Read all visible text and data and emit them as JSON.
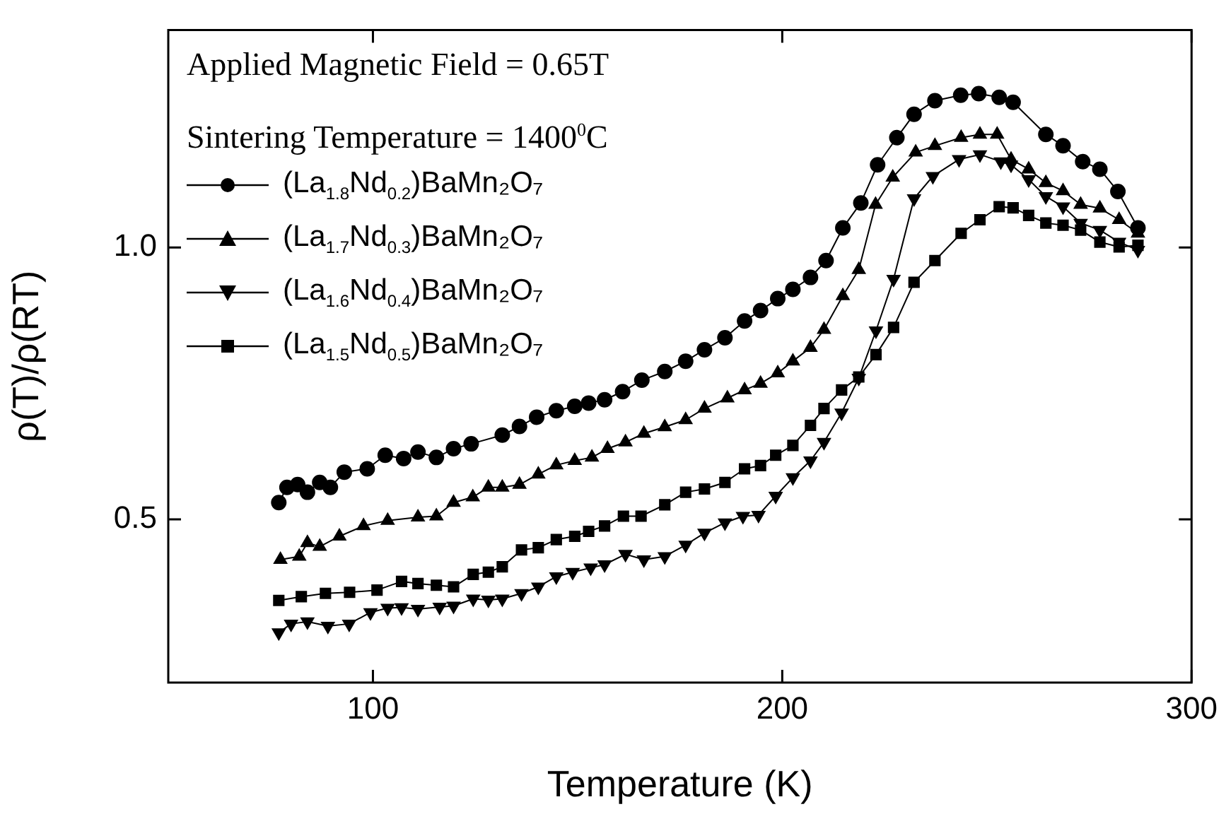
{
  "chart_data": {
    "type": "line",
    "xlabel": "Temperature (K)",
    "ylabel": "ρ(T)/ρ(RT)",
    "annotations": [
      "Applied Magnetic Field = 0.65T",
      "Sintering Temperature = 1400$^{0}$C"
    ],
    "xlim": [
      50,
      300
    ],
    "xticks": [
      100,
      200,
      300
    ],
    "ylim": [
      0.2,
      1.4
    ],
    "yticks": [
      {
        "value": 0.5,
        "label": "0.5"
      },
      {
        "value": 1.0,
        "label": "1.0"
      }
    ],
    "grid": false,
    "legend": "top left",
    "line_style": "solid",
    "series": [
      {
        "name": "(La$_{1.8}$Nd$_{0.2}$)BaMn₂O₇",
        "color": "#000000",
        "marker": "circle",
        "x": [
          77,
          79,
          81.6,
          84,
          87,
          89.6,
          93,
          98.6,
          103,
          107.5,
          111,
          115.5,
          119.7,
          124,
          131.6,
          135.8,
          140,
          144.8,
          149.3,
          152.7,
          156.6,
          161,
          165.7,
          171.3,
          176.4,
          181,
          186,
          190.8,
          194.7,
          198.9,
          202.6,
          206.9,
          210.7,
          214.8,
          219.2,
          223.3,
          228,
          232.2,
          237.3,
          243.6,
          248,
          253,
          256.4,
          264.4,
          268.6,
          273.4,
          277.6,
          282,
          286.9
        ],
        "values": [
          0.531,
          0.559,
          0.564,
          0.55,
          0.568,
          0.559,
          0.587,
          0.593,
          0.618,
          0.612,
          0.624,
          0.614,
          0.63,
          0.639,
          0.655,
          0.671,
          0.688,
          0.7,
          0.708,
          0.714,
          0.72,
          0.735,
          0.756,
          0.772,
          0.791,
          0.812,
          0.834,
          0.865,
          0.884,
          0.906,
          0.923,
          0.945,
          0.976,
          1.036,
          1.082,
          1.152,
          1.202,
          1.245,
          1.27,
          1.28,
          1.283,
          1.276,
          1.267,
          1.208,
          1.187,
          1.158,
          1.144,
          1.103,
          1.036
        ]
      },
      {
        "name": "(La$_{1.7}$Nd$_{0.3}$)BaMn₂O₇",
        "color": "#000000",
        "marker": "triangle",
        "x": [
          77.4,
          82,
          84,
          87,
          91.8,
          97.7,
          103.6,
          111,
          115.5,
          119.7,
          124.4,
          128.2,
          131.6,
          135.8,
          140.4,
          144.8,
          149.3,
          153.5,
          157.3,
          161.7,
          166.2,
          171.3,
          176.4,
          181,
          186.6,
          190.8,
          194.7,
          198.9,
          202.6,
          206.9,
          210.2,
          214.8,
          218.7,
          222.8,
          227,
          232.6,
          237.3,
          243.7,
          248.3,
          252.5,
          255.9,
          260.2,
          264.4,
          268.6,
          272.9,
          277.6,
          282.3,
          286.9
        ],
        "values": [
          0.426,
          0.432,
          0.457,
          0.45,
          0.469,
          0.488,
          0.498,
          0.504,
          0.506,
          0.531,
          0.541,
          0.559,
          0.559,
          0.564,
          0.583,
          0.6,
          0.608,
          0.614,
          0.63,
          0.642,
          0.658,
          0.67,
          0.683,
          0.704,
          0.723,
          0.738,
          0.75,
          0.769,
          0.791,
          0.816,
          0.849,
          0.911,
          0.959,
          1.079,
          1.129,
          1.175,
          1.187,
          1.202,
          1.208,
          1.208,
          1.162,
          1.144,
          1.119,
          1.104,
          1.079,
          1.072,
          1.051,
          1.026
        ]
      },
      {
        "name": "(La$_{1.6}$Nd$_{0.4}$)BaMn₂O₇",
        "color": "#000000",
        "marker": "triangle_down",
        "x": [
          77,
          80,
          84,
          89,
          94.2,
          99.4,
          103.6,
          107,
          111,
          116.3,
          119.7,
          124.5,
          128.2,
          131.6,
          136.3,
          140.4,
          144.8,
          148.8,
          153.2,
          156.6,
          161.7,
          166.2,
          171.3,
          176.4,
          181,
          186,
          190.4,
          194.2,
          198.4,
          202.6,
          206.9,
          210.2,
          214.5,
          218.7,
          222.9,
          227.2,
          232.2,
          236.8,
          243.2,
          248.3,
          253.4,
          255.9,
          260.2,
          264.4,
          268.6,
          272.9,
          277.6,
          282.3,
          286.9
        ],
        "values": [
          0.292,
          0.308,
          0.312,
          0.304,
          0.308,
          0.329,
          0.337,
          0.338,
          0.335,
          0.339,
          0.341,
          0.354,
          0.352,
          0.354,
          0.364,
          0.376,
          0.395,
          0.403,
          0.411,
          0.417,
          0.436,
          0.426,
          0.432,
          0.453,
          0.475,
          0.494,
          0.506,
          0.508,
          0.543,
          0.577,
          0.608,
          0.642,
          0.696,
          0.76,
          0.847,
          0.942,
          1.09,
          1.131,
          1.162,
          1.171,
          1.158,
          1.152,
          1.125,
          1.094,
          1.075,
          1.045,
          1.032,
          1.01,
          0.995
        ]
      },
      {
        "name": "(La$_{1.5}$Nd$_{0.5}$)BaMn₂O₇",
        "color": "#000000",
        "marker": "square",
        "x": [
          77,
          82.5,
          88.4,
          94.3,
          101,
          107,
          111,
          115.5,
          119.7,
          124.5,
          128.2,
          131.6,
          136.3,
          140.4,
          144.8,
          149.3,
          152.7,
          156.6,
          161.2,
          165.5,
          171.3,
          176.4,
          181,
          186,
          190.8,
          194.7,
          198.4,
          202.6,
          206.9,
          210.2,
          214.5,
          218.7,
          222.9,
          227.2,
          232.2,
          237.3,
          243.7,
          248.3,
          253,
          256.4,
          260.2,
          264.4,
          268.6,
          272.9,
          277.6,
          282.3,
          286.9
        ],
        "values": [
          0.351,
          0.358,
          0.364,
          0.366,
          0.37,
          0.386,
          0.382,
          0.379,
          0.376,
          0.399,
          0.403,
          0.413,
          0.444,
          0.448,
          0.463,
          0.469,
          0.478,
          0.488,
          0.506,
          0.506,
          0.527,
          0.55,
          0.556,
          0.568,
          0.593,
          0.599,
          0.618,
          0.636,
          0.673,
          0.704,
          0.738,
          0.762,
          0.803,
          0.853,
          0.936,
          0.976,
          1.026,
          1.051,
          1.075,
          1.073,
          1.059,
          1.045,
          1.041,
          1.032,
          1.01,
          1.001,
          1.004
        ]
      }
    ]
  }
}
